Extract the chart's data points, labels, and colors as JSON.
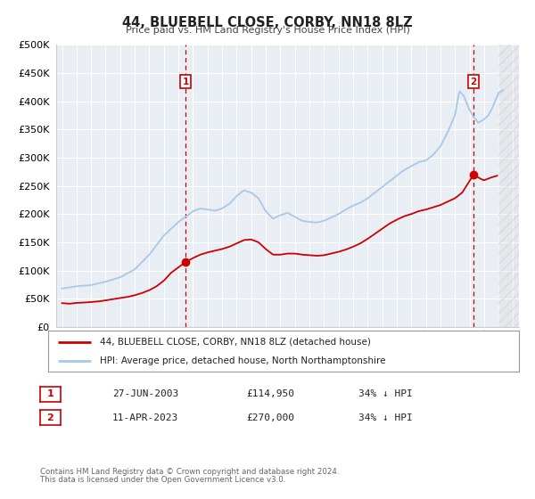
{
  "title": "44, BLUEBELL CLOSE, CORBY, NN18 8LZ",
  "subtitle": "Price paid vs. HM Land Registry's House Price Index (HPI)",
  "legend_line1": "44, BLUEBELL CLOSE, CORBY, NN18 8LZ (detached house)",
  "legend_line2": "HPI: Average price, detached house, North Northamptonshire",
  "annotation1_label": "1",
  "annotation1_date": "27-JUN-2003",
  "annotation1_price": "£114,950",
  "annotation1_pct": "34% ↓ HPI",
  "annotation2_label": "2",
  "annotation2_date": "11-APR-2023",
  "annotation2_price": "£270,000",
  "annotation2_pct": "34% ↓ HPI",
  "footer1": "Contains HM Land Registry data © Crown copyright and database right 2024.",
  "footer2": "This data is licensed under the Open Government Licence v3.0.",
  "hpi_color": "#a8c8e8",
  "price_color": "#cc0000",
  "marker_color": "#cc0000",
  "vline_color": "#cc0000",
  "background_color": "#ffffff",
  "plot_bg_color": "#e8eef4",
  "grid_color": "#ffffff",
  "ylim_max": 500000,
  "ylim_min": 0,
  "sale1_year": 2003.49,
  "sale1_price": 114950,
  "sale2_year": 2023.28,
  "sale2_price": 270000,
  "hpi_waypoints": [
    [
      1995.0,
      68000
    ],
    [
      1996.0,
      72000
    ],
    [
      1997.0,
      74000
    ],
    [
      1998.0,
      80000
    ],
    [
      1999.0,
      88000
    ],
    [
      2000.0,
      102000
    ],
    [
      2001.0,
      128000
    ],
    [
      2002.0,
      162000
    ],
    [
      2003.0,
      186000
    ],
    [
      2003.5,
      195000
    ],
    [
      2004.0,
      205000
    ],
    [
      2004.5,
      210000
    ],
    [
      2005.0,
      208000
    ],
    [
      2005.5,
      206000
    ],
    [
      2006.0,
      210000
    ],
    [
      2006.5,
      218000
    ],
    [
      2007.0,
      232000
    ],
    [
      2007.5,
      242000
    ],
    [
      2008.0,
      238000
    ],
    [
      2008.5,
      228000
    ],
    [
      2009.0,
      205000
    ],
    [
      2009.5,
      192000
    ],
    [
      2010.0,
      198000
    ],
    [
      2010.5,
      202000
    ],
    [
      2011.0,
      195000
    ],
    [
      2011.5,
      188000
    ],
    [
      2012.0,
      186000
    ],
    [
      2012.5,
      185000
    ],
    [
      2013.0,
      188000
    ],
    [
      2013.5,
      194000
    ],
    [
      2014.0,
      200000
    ],
    [
      2014.5,
      208000
    ],
    [
      2015.0,
      215000
    ],
    [
      2015.5,
      220000
    ],
    [
      2016.0,
      228000
    ],
    [
      2016.5,
      238000
    ],
    [
      2017.0,
      248000
    ],
    [
      2017.5,
      258000
    ],
    [
      2018.0,
      268000
    ],
    [
      2018.5,
      278000
    ],
    [
      2019.0,
      285000
    ],
    [
      2019.5,
      292000
    ],
    [
      2020.0,
      295000
    ],
    [
      2020.5,
      305000
    ],
    [
      2021.0,
      320000
    ],
    [
      2021.5,
      345000
    ],
    [
      2022.0,
      375000
    ],
    [
      2022.3,
      418000
    ],
    [
      2022.6,
      410000
    ],
    [
      2023.0,
      385000
    ],
    [
      2023.3,
      372000
    ],
    [
      2023.6,
      362000
    ],
    [
      2024.0,
      368000
    ],
    [
      2024.3,
      375000
    ],
    [
      2024.6,
      390000
    ],
    [
      2025.0,
      415000
    ],
    [
      2025.3,
      420000
    ]
  ],
  "price_waypoints": [
    [
      1995.0,
      42000
    ],
    [
      1995.5,
      41000
    ],
    [
      1996.0,
      42500
    ],
    [
      1996.5,
      43000
    ],
    [
      1997.0,
      44000
    ],
    [
      1997.5,
      45000
    ],
    [
      1998.0,
      47000
    ],
    [
      1998.5,
      49000
    ],
    [
      1999.0,
      51000
    ],
    [
      1999.5,
      53000
    ],
    [
      2000.0,
      56000
    ],
    [
      2000.5,
      60000
    ],
    [
      2001.0,
      65000
    ],
    [
      2001.5,
      72000
    ],
    [
      2002.0,
      82000
    ],
    [
      2002.5,
      96000
    ],
    [
      2003.49,
      114950
    ],
    [
      2004.0,
      122000
    ],
    [
      2004.5,
      128000
    ],
    [
      2005.0,
      132000
    ],
    [
      2005.5,
      135000
    ],
    [
      2006.0,
      138000
    ],
    [
      2006.5,
      142000
    ],
    [
      2007.0,
      148000
    ],
    [
      2007.5,
      154000
    ],
    [
      2008.0,
      155000
    ],
    [
      2008.5,
      150000
    ],
    [
      2009.0,
      138000
    ],
    [
      2009.5,
      128000
    ],
    [
      2010.0,
      128000
    ],
    [
      2010.5,
      130000
    ],
    [
      2011.0,
      130000
    ],
    [
      2011.5,
      128000
    ],
    [
      2012.0,
      127000
    ],
    [
      2012.5,
      126000
    ],
    [
      2013.0,
      127000
    ],
    [
      2013.5,
      130000
    ],
    [
      2014.0,
      133000
    ],
    [
      2014.5,
      137000
    ],
    [
      2015.0,
      142000
    ],
    [
      2015.5,
      148000
    ],
    [
      2016.0,
      156000
    ],
    [
      2016.5,
      165000
    ],
    [
      2017.0,
      174000
    ],
    [
      2017.5,
      183000
    ],
    [
      2018.0,
      190000
    ],
    [
      2018.5,
      196000
    ],
    [
      2019.0,
      200000
    ],
    [
      2019.5,
      205000
    ],
    [
      2020.0,
      208000
    ],
    [
      2020.5,
      212000
    ],
    [
      2021.0,
      216000
    ],
    [
      2021.5,
      222000
    ],
    [
      2022.0,
      228000
    ],
    [
      2022.5,
      238000
    ],
    [
      2023.28,
      270000
    ],
    [
      2023.8,
      262000
    ],
    [
      2024.0,
      260000
    ],
    [
      2024.5,
      265000
    ],
    [
      2024.9,
      268000
    ]
  ]
}
